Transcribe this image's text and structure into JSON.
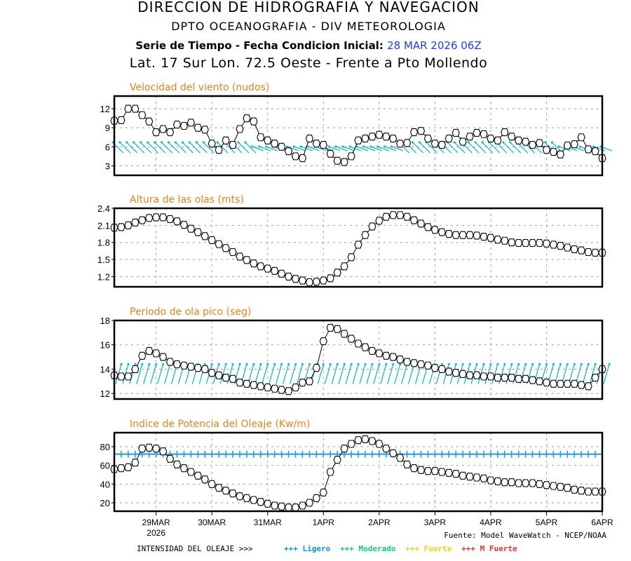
{
  "header": {
    "line1": "DIRECCION DE HIDROGRAFIA Y NAVEGACION",
    "line2": "DPTO OCEANOGRAFIA - DIV METEOROLOGIA",
    "line3_prefix": "Serie de Tiempo - Fecha Condicion Inicial:",
    "line3_date": "28 MAR 2026 06Z",
    "line4": "Lat. 17 Sur  Lon. 72.5 Oeste - Frente a Pto Mollendo"
  },
  "footer": {
    "source": "Fuente: Model WaveWatch - NCEP/NOAA",
    "intensity_label": "INTENSIDAD DEL OLEAJE >>>",
    "intensity_legend": [
      {
        "symbol": "+++",
        "label": "Ligero",
        "color": "#0a8ff0"
      },
      {
        "symbol": "+++",
        "label": "Moderado",
        "color": "#0ccf7a"
      },
      {
        "symbol": "+++",
        "label": "Fuerte",
        "color": "#e6d21e"
      },
      {
        "symbol": "+++",
        "label": "M Fuerte",
        "color": "#f03232"
      }
    ]
  },
  "colors": {
    "title": "#f07f1c",
    "series": "#000000",
    "arrows": "#19b9c4",
    "threshold": "#1a9ae6",
    "grid": "#a0a0a0"
  },
  "chart_data": [
    {
      "type": "line",
      "title": "Velocidad del viento (nudos)",
      "ylabel": "nudos",
      "x_start": "28 MAR 2026 06Z",
      "x_step_hours": 3,
      "x_tick_labels": [
        "29MAR",
        "30MAR",
        "31MAR",
        "1APR",
        "2APR",
        "3APR",
        "4APR",
        "5APR",
        "6APR"
      ],
      "x_year_label": "2026",
      "yticks": [
        3,
        6,
        9,
        12
      ],
      "ylim": [
        1.5,
        14
      ],
      "grid": true,
      "direction_arrows": true,
      "values": [
        10.1,
        10.2,
        12.0,
        12.0,
        11.0,
        10.0,
        8.3,
        8.8,
        8.3,
        9.5,
        9.3,
        9.8,
        9.0,
        8.7,
        6.5,
        5.5,
        7.0,
        6.3,
        8.8,
        10.5,
        10.0,
        7.5,
        7.0,
        6.5,
        6.0,
        5.3,
        4.5,
        4.2,
        7.3,
        6.5,
        6.3,
        4.9,
        3.8,
        3.6,
        4.5,
        7.0,
        7.3,
        7.6,
        7.9,
        7.6,
        7.3,
        6.5,
        6.6,
        8.3,
        8.5,
        7.3,
        6.5,
        6.3,
        7.3,
        8.2,
        6.8,
        7.6,
        8.2,
        8.0,
        7.3,
        7.0,
        8.3,
        7.6,
        7.0,
        6.8,
        6.3,
        6.6,
        5.5,
        5.2,
        4.8,
        6.2,
        6.4,
        7.5,
        5.6,
        5.3,
        4.2
      ]
    },
    {
      "type": "line",
      "title": "Altura de las olas (mts)",
      "ylabel": "mts",
      "yticks": [
        1.2,
        1.5,
        1.8,
        2.1,
        2.4
      ],
      "ylim": [
        1.02,
        2.4
      ],
      "grid": true,
      "values": [
        2.06,
        2.07,
        2.1,
        2.15,
        2.19,
        2.23,
        2.24,
        2.24,
        2.21,
        2.17,
        2.11,
        2.04,
        1.98,
        1.91,
        1.84,
        1.77,
        1.7,
        1.63,
        1.55,
        1.49,
        1.43,
        1.38,
        1.34,
        1.3,
        1.25,
        1.2,
        1.16,
        1.13,
        1.1,
        1.11,
        1.13,
        1.17,
        1.27,
        1.38,
        1.54,
        1.76,
        1.93,
        2.08,
        2.18,
        2.25,
        2.28,
        2.28,
        2.25,
        2.19,
        2.13,
        2.07,
        2.02,
        1.98,
        1.95,
        1.93,
        1.93,
        1.93,
        1.92,
        1.9,
        1.88,
        1.85,
        1.83,
        1.8,
        1.79,
        1.79,
        1.79,
        1.79,
        1.78,
        1.76,
        1.74,
        1.71,
        1.68,
        1.66,
        1.63,
        1.62,
        1.62,
        1.62,
        1.63,
        1.64,
        1.64,
        1.65,
        1.65,
        1.65,
        1.65
      ]
    },
    {
      "type": "line",
      "title": "Periodo de ola pico (seg)",
      "ylabel": "seg",
      "yticks": [
        12,
        14,
        16,
        18
      ],
      "ylim": [
        11.55,
        18
      ],
      "grid": true,
      "direction_arrows": true,
      "values": [
        13.5,
        13.4,
        13.4,
        14.0,
        15.1,
        15.5,
        15.3,
        15.0,
        14.6,
        14.4,
        14.3,
        14.2,
        14.1,
        14.0,
        13.7,
        13.5,
        13.3,
        13.2,
        12.9,
        12.8,
        12.7,
        12.6,
        12.5,
        12.4,
        12.3,
        12.2,
        12.5,
        12.9,
        13.0,
        14.1,
        16.3,
        17.4,
        17.3,
        16.9,
        16.5,
        16.1,
        15.8,
        15.5,
        15.3,
        15.1,
        15.0,
        14.8,
        14.6,
        14.5,
        14.4,
        14.3,
        14.1,
        14.0,
        13.8,
        13.7,
        13.6,
        13.5,
        13.5,
        13.4,
        13.4,
        13.3,
        13.3,
        13.3,
        13.2,
        13.2,
        13.1,
        13.0,
        12.9,
        12.8,
        12.8,
        12.8,
        12.8,
        12.7,
        12.6,
        13.3,
        14.0,
        14.3
      ]
    },
    {
      "type": "line",
      "title": "Indice de Potencia del Oleaje (Kw/m)",
      "ylabel": "Kw/m",
      "yticks": [
        20,
        40,
        60,
        80
      ],
      "ylim": [
        11,
        95
      ],
      "grid": true,
      "threshold": {
        "value": 72,
        "label": "Ligero"
      },
      "values": [
        56,
        57,
        58,
        63,
        78,
        79,
        78,
        75,
        67,
        61,
        57,
        53,
        49,
        45,
        40,
        36,
        33,
        30,
        27,
        25,
        23,
        21,
        19,
        17,
        16,
        15,
        15,
        17,
        20,
        25,
        31,
        53,
        66,
        78,
        83,
        87,
        88,
        86,
        83,
        78,
        73,
        68,
        61,
        57,
        55,
        54,
        54,
        53,
        52,
        51,
        49,
        48,
        47,
        46,
        44,
        43,
        42,
        42,
        41,
        41,
        41,
        40,
        39,
        38,
        37,
        36,
        34,
        33,
        32,
        32,
        32,
        32,
        32,
        32,
        33,
        33,
        39,
        37
      ]
    }
  ]
}
